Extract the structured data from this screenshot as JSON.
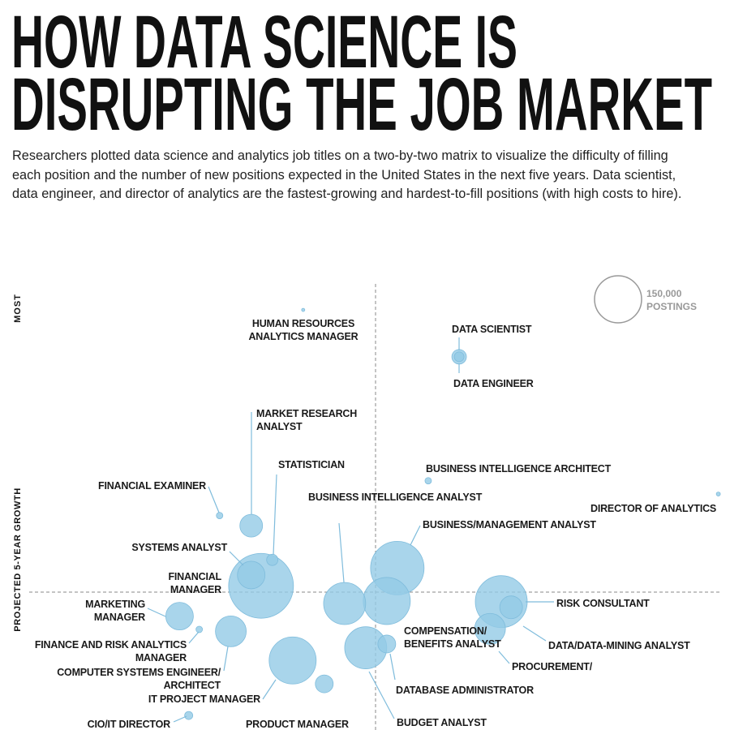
{
  "header": {
    "title_lines": [
      "HOW DATA SCIENCE IS",
      "DISRUPTING THE JOB MARKET"
    ],
    "description": "Researchers plotted data science and analytics job titles on a two-by-two matrix to visualize the difficulty of filling each position and the number of new positions expected in the United States in the next five years. Data scientist, data engineer, and director of analytics are the fastest-growing and hardest-to-fill positions (with high costs to hire)."
  },
  "chart_data": {
    "type": "bubble",
    "ylabel": "PROJECTED 5-YEAR GROWTH",
    "y_end_label": "MOST",
    "color": "#93cbe6",
    "xlim": [
      0,
      100
    ],
    "ylim": [
      0,
      100
    ],
    "size_legend": {
      "value": 150000,
      "label": "150,000",
      "unit": "POSTINGS"
    },
    "labels": [
      "HUMAN RESOURCES\nANALYTICS MANAGER",
      "DATA SCIENTIST",
      "DATA ENGINEER",
      "BUSINESS INTELLIGENCE ARCHITECT",
      "DIRECTOR OF ANALYTICS",
      "FINANCIAL EXAMINER",
      "MARKET RESEARCH\nANALYST",
      "STATISTICIAN",
      "BUSINESS INTELLIGENCE ANALYST",
      "BUSINESS/MANAGEMENT ANALYST",
      "SYSTEMS ANALYST",
      "FINANCIAL\nMANAGER",
      "MARKETING\nMANAGER",
      "FINANCE AND RISK ANALYTICS MANAGER",
      "COMPUTER SYSTEMS ENGINEER/ ARCHITECT",
      "IT PROJECT MANAGER",
      "CIO/IT DIRECTOR",
      "PRODUCT MANAGER",
      "COMPENSATION/\nBENEFITS ANALYST",
      "RISK CONSULTANT",
      "DATA/DATA-MINING ANALYST",
      "PROCUREMENT/",
      "DATABASE ADMINISTRATOR",
      "BUDGET ANALYST"
    ],
    "x": [
      39.7,
      61.9,
      61.9,
      57.5,
      98.8,
      27.8,
      32.3,
      35.3,
      32.3,
      33.7,
      53.1,
      45.6,
      51.6,
      51.6,
      48.6,
      67.9,
      69.3,
      66.3,
      22.1,
      24.9,
      29.4,
      38.2,
      42.7,
      23.4
    ],
    "y": [
      94.6,
      87.2,
      87.2,
      67.6,
      65.5,
      62.1,
      60.5,
      55.1,
      52.7,
      51.0,
      53.8,
      48.2,
      48.6,
      41.8,
      41.2,
      48.5,
      47.6,
      44.2,
      46.2,
      44.1,
      43.8,
      39.2,
      35.5,
      30.5
    ],
    "sizes": [
      700,
      14400,
      6400,
      2850,
      1100,
      2850,
      35000,
      8700,
      51500,
      285000,
      194000,
      120000,
      150000,
      21600,
      120000,
      182600,
      35000,
      64400,
      51500,
      2850,
      64400,
      150000,
      21600,
      4460
    ]
  }
}
